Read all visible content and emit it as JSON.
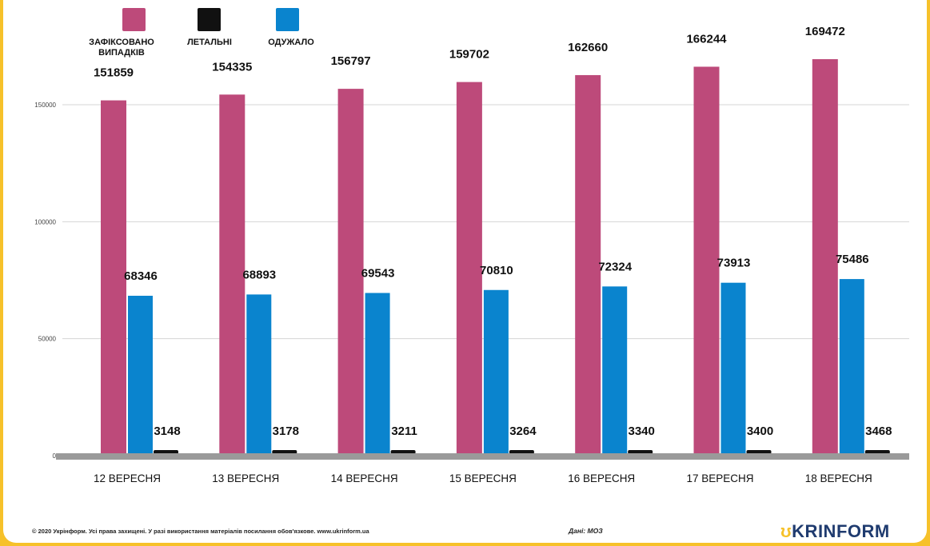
{
  "chart_data": {
    "type": "bar",
    "categories": [
      "12 ВЕРЕСНЯ",
      "13 ВЕРЕСНЯ",
      "14 ВЕРЕСНЯ",
      "15 ВЕРЕСНЯ",
      "16 ВЕРЕСНЯ",
      "17 ВЕРЕСНЯ",
      "18 ВЕРЕСНЯ"
    ],
    "series": [
      {
        "name": "ЗАФІКСОВАНО ВИПАДКІВ",
        "color": "#bd4a7a",
        "values": [
          151859,
          154335,
          156797,
          159702,
          162660,
          166244,
          169472
        ]
      },
      {
        "name": "ОДУЖАЛО",
        "color": "#0a84ce",
        "values": [
          68346,
          68893,
          69543,
          70810,
          72324,
          73913,
          75486
        ]
      },
      {
        "name": "ЛЕТАЛЬНІ",
        "color": "#111111",
        "values": [
          3148,
          3178,
          3211,
          3264,
          3340,
          3400,
          3468
        ]
      }
    ],
    "legend": [
      {
        "name": "ЗАФІКСОВАНО ВИПАДКІВ",
        "color": "#bd4a7a"
      },
      {
        "name": "ЛЕТАЛЬНІ",
        "color": "#111111"
      },
      {
        "name": "ОДУЖАЛО",
        "color": "#0a84ce"
      }
    ],
    "y_ticks": [
      0,
      50000,
      100000,
      150000
    ],
    "ylim": [
      0,
      180000
    ],
    "grid": true,
    "legend_position": "top-left"
  },
  "footer": {
    "copyright": "© 2020 Укрінформ. Усі права захищені. У разі використання матеріалів посилання обов'язкове. www.ukrinform.ua",
    "source": "Дані: МОЗ",
    "brand_mark": "ʊ",
    "brand_name": "KRINFORM"
  }
}
